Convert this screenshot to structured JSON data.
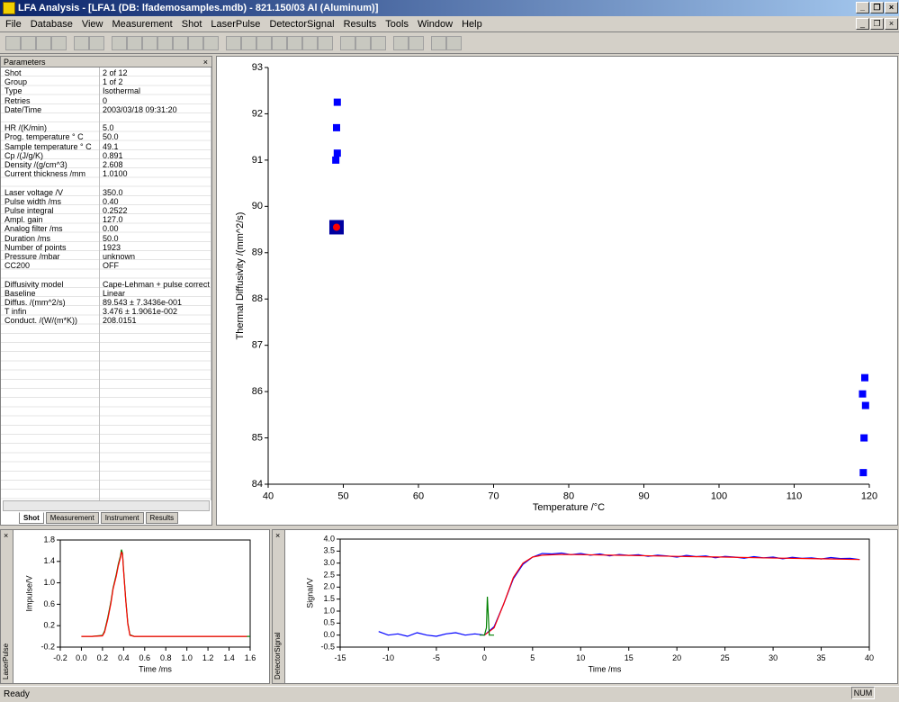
{
  "window": {
    "title": "LFA Analysis - [LFA1 (DB: lfademosamples.mdb) - 821.150/03 Al (Aluminum)]"
  },
  "menu": [
    "File",
    "Database",
    "View",
    "Measurement",
    "Shot",
    "LaserPulse",
    "DetectorSignal",
    "Results",
    "Tools",
    "Window",
    "Help"
  ],
  "parameters": {
    "title": "Parameters",
    "groups": [
      [
        [
          "Shot",
          "2 of 12"
        ],
        [
          "Group",
          "1 of 2"
        ],
        [
          "Type",
          "Isothermal"
        ],
        [
          "Retries",
          "0"
        ],
        [
          "Date/Time",
          "2003/03/18 09:31:20"
        ]
      ],
      [
        [
          "HR /(K/min)",
          "5.0"
        ],
        [
          "Prog. temperature ° C",
          "50.0"
        ],
        [
          "Sample temperature ° C",
          "49.1"
        ],
        [
          "Cp /(J/g/K)",
          "0.891"
        ],
        [
          "Density /(g/cm^3)",
          "2.608"
        ],
        [
          "Current thickness /mm",
          "1.0100"
        ]
      ],
      [
        [
          "Laser voltage /V",
          "350.0"
        ],
        [
          "Pulse width /ms",
          "0.40"
        ],
        [
          "Pulse integral",
          "0.2522"
        ],
        [
          "Ampl. gain",
          "127.0"
        ],
        [
          "Analog filter /ms",
          "0.00"
        ],
        [
          "Duration /ms",
          "50.0"
        ],
        [
          "Number of points",
          "1923"
        ],
        [
          "Pressure /mbar",
          "unknown"
        ],
        [
          "CC200",
          "OFF"
        ]
      ],
      [
        [
          "Diffusivity model",
          "Cape-Lehman + pulse correct"
        ],
        [
          "Baseline",
          "Linear"
        ],
        [
          "Diffus. /(mm^2/s)",
          "89.543 ± 7.3436e-001"
        ],
        [
          "T infin",
          "3.476 ± 1.9061e-002"
        ],
        [
          "Conduct. /(W/(m*K))",
          "208.0151"
        ]
      ]
    ]
  },
  "tabs": [
    "Shot",
    "Measurement",
    "Instrument",
    "Results"
  ],
  "panels": [
    "LaserPulse",
    "DetectorSignal"
  ],
  "status": {
    "text": "Ready",
    "num": "NUM"
  },
  "chart_data": [
    {
      "type": "scatter",
      "xlabel": "Temperature /°C",
      "ylabel": "Thermal Diffusivity /(mm^2/s)",
      "x": [
        49.2,
        49.1,
        49.2,
        49.0,
        49.1,
        119.4,
        119.1,
        119.5,
        119.3,
        119.2
      ],
      "values": [
        92.25,
        91.7,
        91.15,
        91.0,
        89.55,
        86.3,
        85.95,
        85.7,
        85.0,
        84.25
      ],
      "color": "#0000ff",
      "highlight_index": 4,
      "highlight_color": "#ff0000",
      "xlim": [
        40,
        120
      ],
      "xticks": [
        40,
        50,
        60,
        70,
        80,
        90,
        100,
        110,
        120
      ],
      "ylim": [
        84,
        93
      ],
      "yticks": [
        84,
        85,
        86,
        87,
        88,
        89,
        90,
        91,
        92,
        93
      ]
    },
    {
      "type": "line",
      "xlabel": "Time /ms",
      "ylabel": "Impulse/V",
      "series": [
        {
          "color": "#008000",
          "x": [
            0,
            0.1,
            0.2,
            0.22,
            0.25,
            0.28,
            0.3,
            0.33,
            0.35,
            0.37,
            0.38,
            0.39,
            0.4,
            0.42,
            0.44,
            0.46,
            0.5,
            0.7,
            1.0,
            1.3,
            1.6
          ],
          "values": [
            0,
            0,
            0.02,
            0.1,
            0.35,
            0.65,
            0.9,
            1.15,
            1.35,
            1.5,
            1.62,
            1.55,
            1.25,
            0.7,
            0.25,
            0.03,
            0,
            0,
            0,
            0,
            0
          ]
        },
        {
          "color": "#ff0000",
          "x": [
            0,
            0.1,
            0.2,
            0.22,
            0.25,
            0.28,
            0.3,
            0.33,
            0.35,
            0.37,
            0.38,
            0.39,
            0.4,
            0.42,
            0.44,
            0.46,
            0.5,
            0.7,
            1.0,
            1.3,
            1.57
          ],
          "values": [
            0,
            0,
            0.01,
            0.08,
            0.32,
            0.62,
            0.88,
            1.12,
            1.32,
            1.47,
            1.58,
            1.52,
            1.22,
            0.68,
            0.23,
            0.02,
            0,
            0,
            0,
            0,
            0
          ]
        }
      ],
      "xlim": [
        -0.2,
        1.6
      ],
      "xticks": [
        -0.2,
        {
          "value": 0,
          "label": "0.0"
        },
        0.2,
        0.4,
        0.6,
        0.8,
        {
          "value": 1,
          "label": "1.0"
        },
        1.2,
        1.4,
        1.6
      ],
      "ylim": [
        -0.2,
        1.8
      ],
      "yticks": [
        -0.2,
        0.2,
        0.6,
        {
          "value": 1,
          "label": "1.0"
        },
        1.4,
        1.8
      ]
    },
    {
      "type": "line",
      "xlabel": "Time /ms",
      "ylabel": "Signal/V",
      "series": [
        {
          "color": "#0000ff",
          "x": [
            -11,
            -10,
            -9,
            -8,
            -7,
            -6,
            -5,
            -4,
            -3,
            -2,
            -1,
            0,
            1,
            2,
            3,
            4,
            5,
            6,
            7,
            8,
            9,
            10,
            11,
            12,
            13,
            14,
            15,
            16,
            17,
            18,
            19,
            20,
            21,
            22,
            23,
            24,
            25,
            26,
            27,
            28,
            29,
            30,
            31,
            32,
            33,
            34,
            35,
            36,
            37,
            38,
            39
          ],
          "values": [
            0.15,
            0.0,
            0.05,
            -0.05,
            0.1,
            0.0,
            -0.05,
            0.05,
            0.1,
            0.0,
            0.05,
            0.0,
            0.35,
            1.3,
            2.35,
            2.95,
            3.25,
            3.4,
            3.38,
            3.42,
            3.35,
            3.4,
            3.33,
            3.38,
            3.3,
            3.36,
            3.32,
            3.35,
            3.28,
            3.33,
            3.3,
            3.25,
            3.32,
            3.27,
            3.3,
            3.22,
            3.28,
            3.25,
            3.2,
            3.27,
            3.22,
            3.25,
            3.18,
            3.24,
            3.2,
            3.22,
            3.17,
            3.23,
            3.19,
            3.2,
            3.15
          ]
        },
        {
          "color": "#ff0000",
          "x": [
            0,
            1,
            2,
            3,
            4,
            5,
            6,
            8,
            10,
            15,
            20,
            25,
            30,
            35,
            39
          ],
          "values": [
            0,
            0.3,
            1.3,
            2.4,
            3.0,
            3.25,
            3.33,
            3.36,
            3.35,
            3.32,
            3.28,
            3.25,
            3.21,
            3.18,
            3.15
          ]
        },
        {
          "color": "#008000",
          "x": [
            -0.5,
            0,
            0.2,
            0.3,
            0.4,
            0.5,
            1
          ],
          "values": [
            0,
            0,
            0.3,
            1.6,
            0.8,
            0,
            0
          ]
        }
      ],
      "xlim": [
        -15,
        40
      ],
      "xticks": [
        -15,
        -10,
        -5,
        0,
        5,
        10,
        15,
        20,
        25,
        30,
        35,
        40
      ],
      "ylim": [
        -0.5,
        4
      ],
      "yticks": [
        -0.5,
        {
          "value": 0,
          "label": "0.0"
        },
        0.5,
        {
          "value": 1,
          "label": "1.0"
        },
        1.5,
        {
          "value": 2,
          "label": "2.0"
        },
        2.5,
        {
          "value": 3,
          "label": "3.0"
        },
        3.5,
        {
          "value": 4,
          "label": "4.0"
        }
      ]
    }
  ]
}
